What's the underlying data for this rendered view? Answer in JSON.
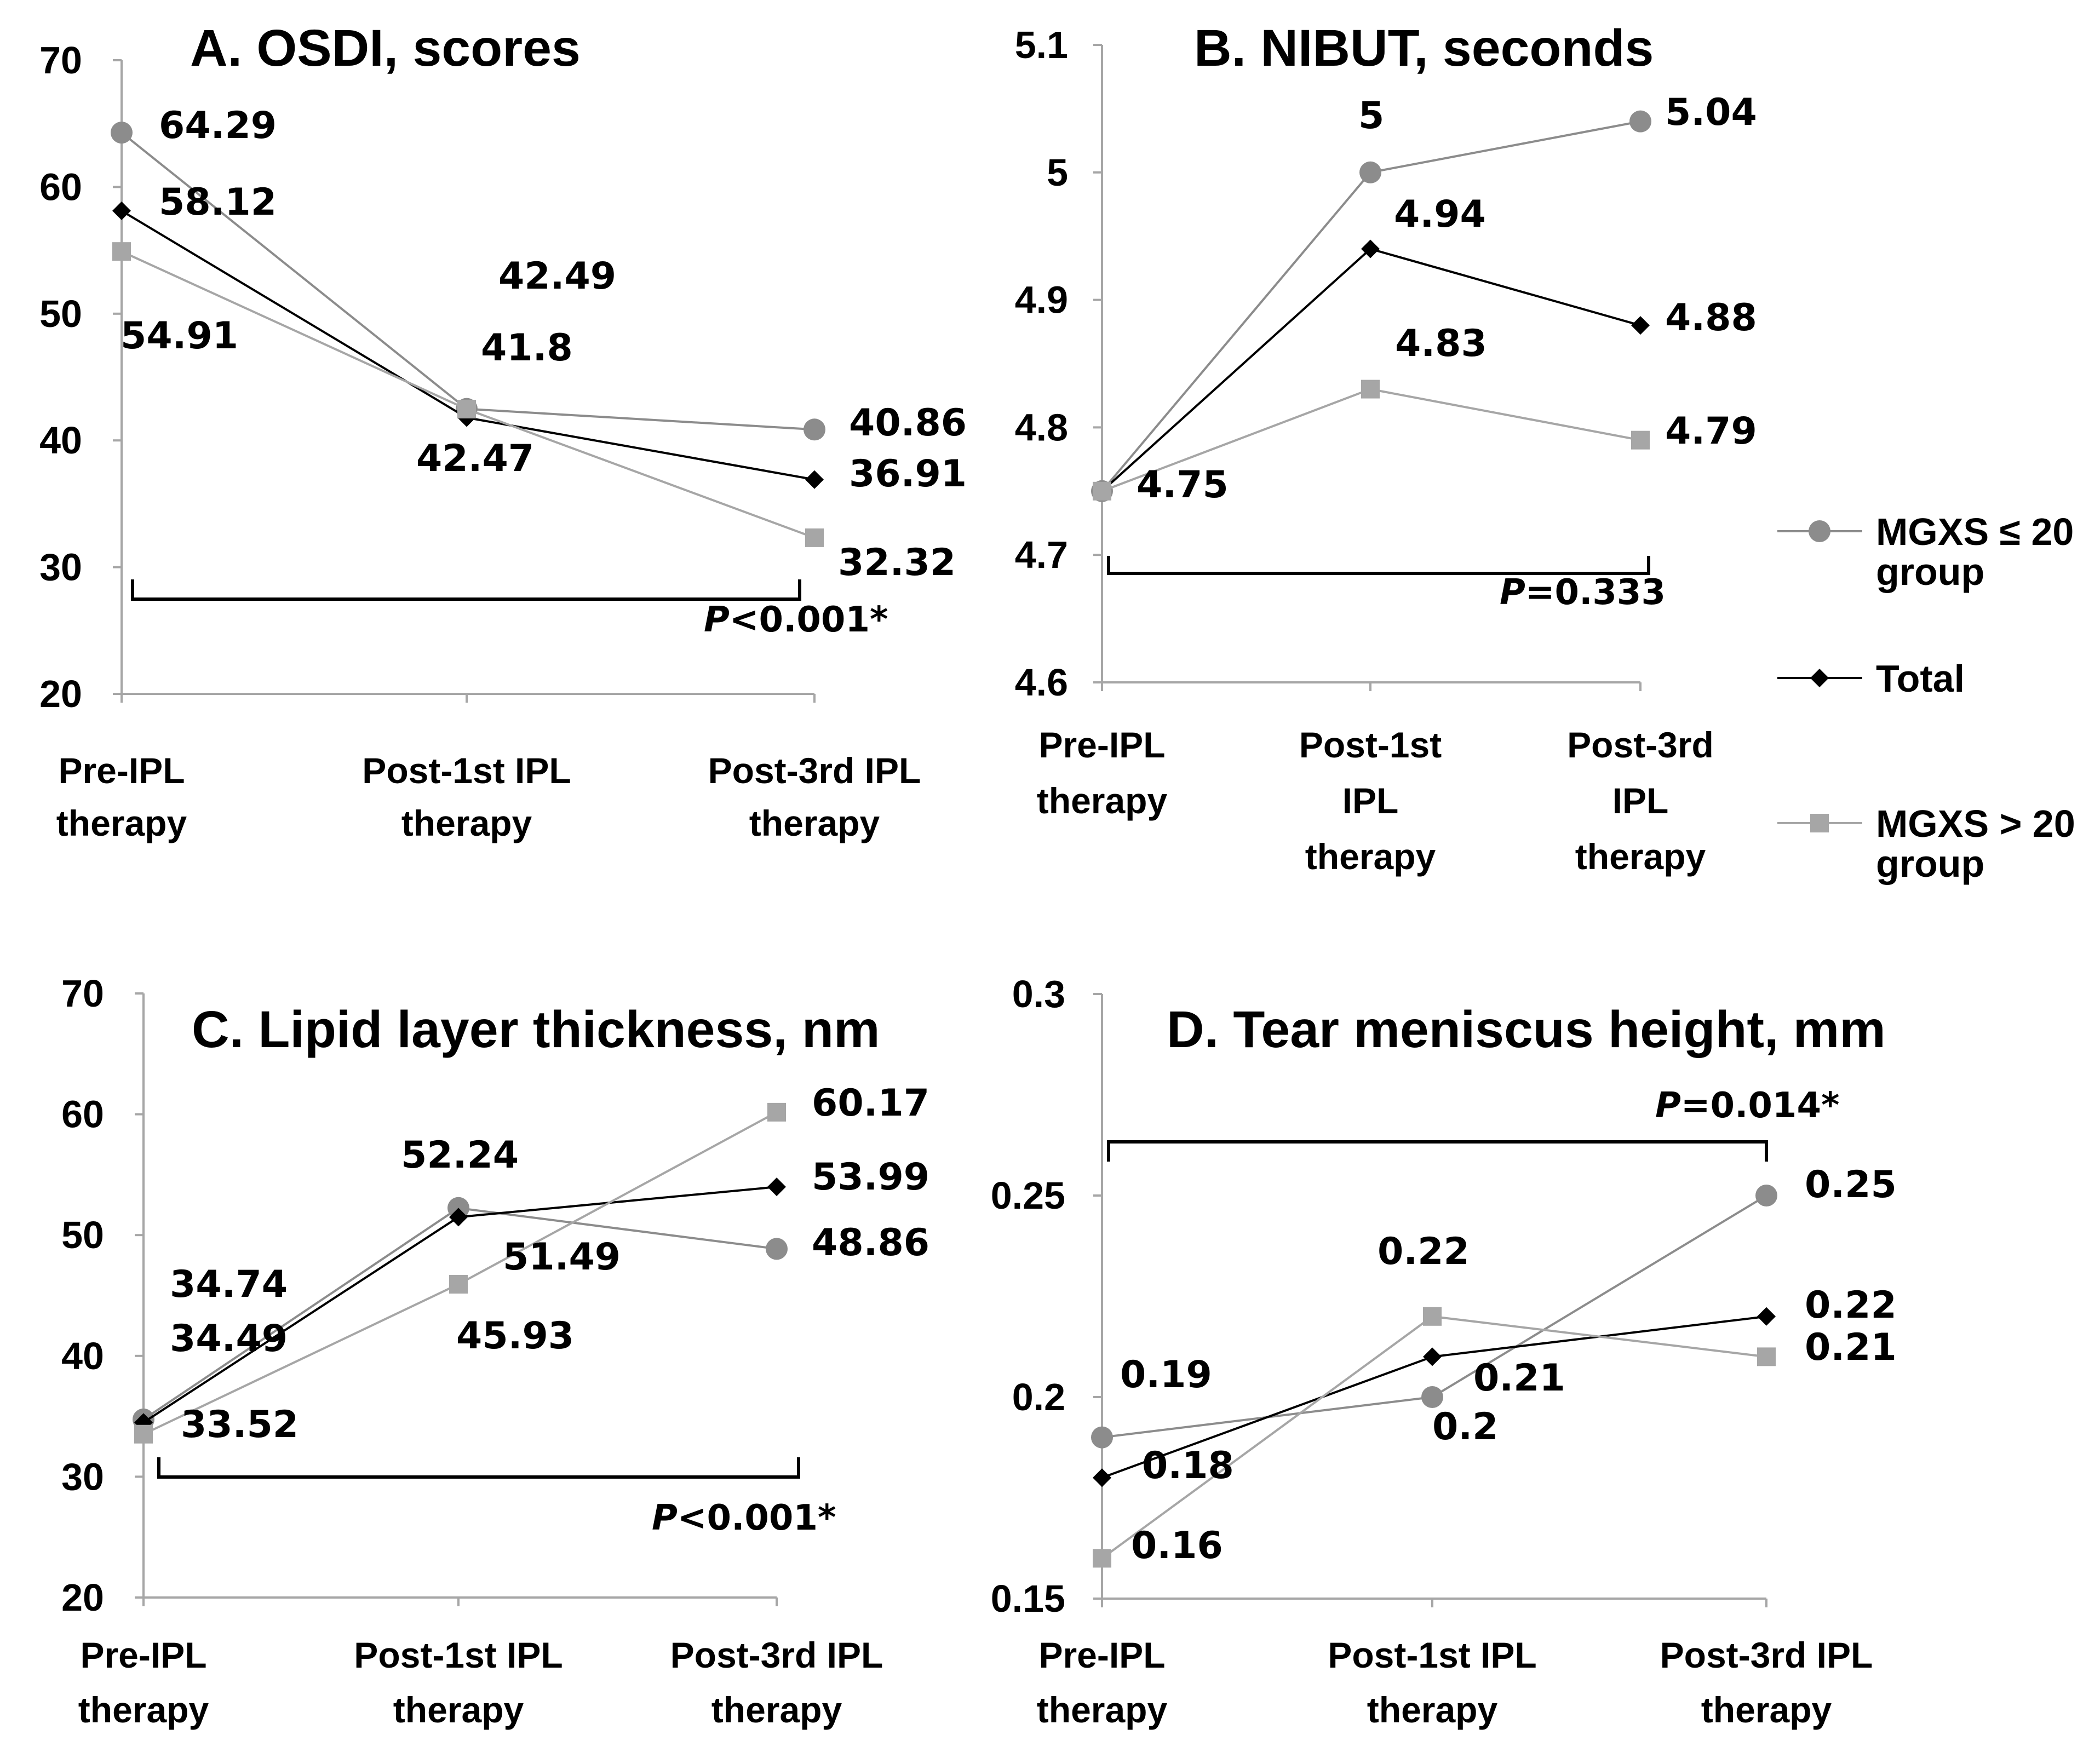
{
  "colors": {
    "mgxs_low": "#8c8c8c",
    "total": "#000000",
    "mgxs_high": "#a6a6a6",
    "axis": "#a6a6a6"
  },
  "legend": {
    "items": [
      {
        "label_line1": "MGXS ≤ 20",
        "label_line2": "group",
        "marker": "circle-icon",
        "color": "#8c8c8c"
      },
      {
        "label_line1": "Total",
        "label_line2": "",
        "marker": "diamond-icon",
        "color": "#000000"
      },
      {
        "label_line1": "MGXS > 20",
        "label_line2": "group",
        "marker": "square-icon",
        "color": "#a6a6a6"
      }
    ]
  },
  "chart_data": [
    {
      "id": "A",
      "type": "line",
      "title": "A. OSDI, scores",
      "categories": [
        [
          "Pre-IPL",
          "therapy"
        ],
        [
          "Post-1st IPL",
          "therapy"
        ],
        [
          "Post-3rd IPL",
          "therapy"
        ]
      ],
      "ylim": [
        20,
        70
      ],
      "yticks": [
        "70",
        "60",
        "50",
        "40",
        "30",
        "20"
      ],
      "series": [
        {
          "name": "MGXS ≤ 20 group",
          "values": [
            64.29,
            42.49,
            40.86
          ],
          "labels": [
            "64.29",
            "42.49",
            "40.86"
          ]
        },
        {
          "name": "Total",
          "values": [
            58.12,
            41.8,
            36.91
          ],
          "labels": [
            "58.12",
            "41.8",
            "36.91"
          ]
        },
        {
          "name": "MGXS > 20 group",
          "values": [
            54.91,
            42.47,
            32.32
          ],
          "labels": [
            "54.91",
            "42.47",
            "32.32"
          ]
        }
      ],
      "pvalue": {
        "prefix": "P",
        "text": "<0.001*"
      }
    },
    {
      "id": "B",
      "type": "line",
      "title": "B. NIBUT, seconds",
      "categories": [
        [
          "Pre-IPL",
          "therapy"
        ],
        [
          "Post-1st",
          "IPL",
          "therapy"
        ],
        [
          "Post-3rd",
          "IPL",
          "therapy"
        ]
      ],
      "ylim": [
        4.6,
        5.1
      ],
      "yticks": [
        "5.1",
        "5",
        "4.9",
        "4.8",
        "4.7",
        "4.6"
      ],
      "series": [
        {
          "name": "MGXS ≤ 20 group",
          "values": [
            4.75,
            5.0,
            5.04
          ],
          "labels": [
            "",
            "5",
            "5.04"
          ]
        },
        {
          "name": "Total",
          "values": [
            4.75,
            4.94,
            4.88
          ],
          "labels": [
            "4.75",
            "4.94",
            "4.88"
          ]
        },
        {
          "name": "MGXS > 20 group",
          "values": [
            4.75,
            4.83,
            4.79
          ],
          "labels": [
            "",
            "4.83",
            "4.79"
          ]
        }
      ],
      "pvalue": {
        "prefix": "P",
        "text": "=0.333"
      }
    },
    {
      "id": "C",
      "type": "line",
      "title": "C. Lipid layer thickness, nm",
      "categories": [
        [
          "Pre-IPL",
          "therapy"
        ],
        [
          "Post-1st IPL",
          "therapy"
        ],
        [
          "Post-3rd IPL",
          "therapy"
        ]
      ],
      "ylim": [
        20,
        70
      ],
      "yticks": [
        "70",
        "60",
        "50",
        "40",
        "30",
        "20"
      ],
      "series": [
        {
          "name": "MGXS ≤ 20 group",
          "values": [
            34.74,
            52.24,
            48.86
          ],
          "labels": [
            "34.74",
            "52.24",
            "48.86"
          ]
        },
        {
          "name": "Total",
          "values": [
            34.49,
            51.49,
            53.99
          ],
          "labels": [
            "34.49",
            "51.49",
            "53.99"
          ]
        },
        {
          "name": "MGXS > 20 group",
          "values": [
            33.52,
            45.93,
            60.17
          ],
          "labels": [
            "33.52",
            "45.93",
            "60.17"
          ]
        }
      ],
      "pvalue": {
        "prefix": "P",
        "text": "<0.001*"
      }
    },
    {
      "id": "D",
      "type": "line",
      "title": "D. Tear meniscus height, mm",
      "categories": [
        [
          "Pre-IPL",
          "therapy"
        ],
        [
          "Post-1st IPL",
          "therapy"
        ],
        [
          "Post-3rd IPL",
          "therapy"
        ]
      ],
      "ylim": [
        0.15,
        0.3
      ],
      "yticks": [
        "0.3",
        "0.25",
        "0.2",
        "0.15"
      ],
      "series": [
        {
          "name": "MGXS ≤ 20 group",
          "values": [
            0.19,
            0.2,
            0.25
          ],
          "labels": [
            "0.19",
            "0.2",
            "0.25"
          ]
        },
        {
          "name": "Total",
          "values": [
            0.18,
            0.21,
            0.22
          ],
          "labels": [
            "0.18",
            "0.21",
            "0.22"
          ]
        },
        {
          "name": "MGXS > 20 group",
          "values": [
            0.16,
            0.22,
            0.21
          ],
          "labels": [
            "0.16",
            "0.22",
            "0.21"
          ]
        }
      ],
      "pvalue": {
        "prefix": "P",
        "text": "=0.014*"
      }
    }
  ]
}
